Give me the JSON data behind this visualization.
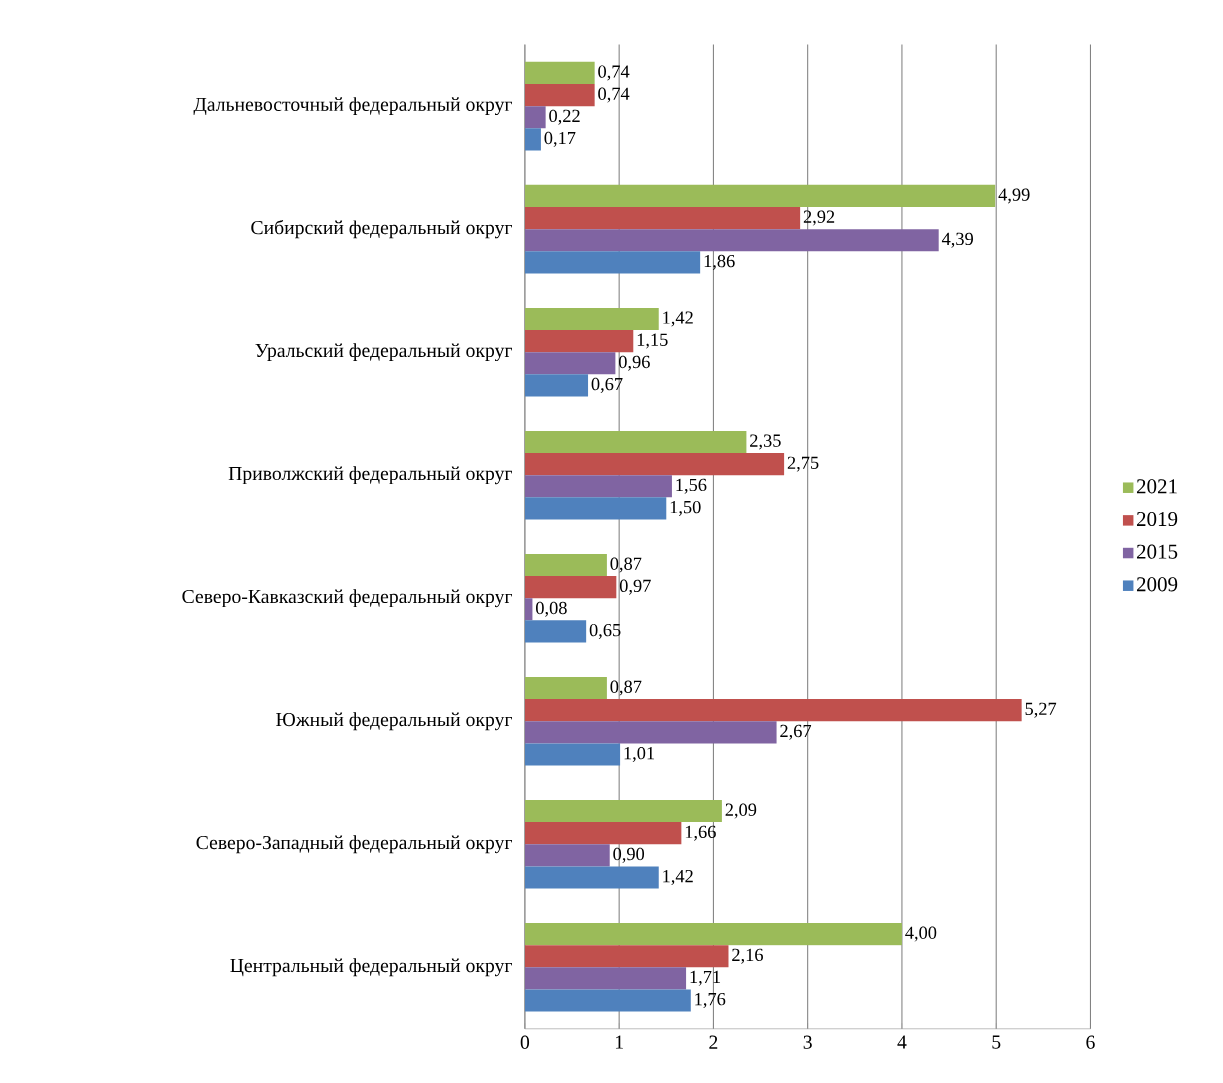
{
  "chart_data": {
    "type": "bar",
    "orientation": "horizontal",
    "categories": [
      "Дальневосточный федеральный округ",
      "Сибирский федеральный округ",
      "Уральский федеральный округ",
      "Приволжский федеральный округ",
      "Северо-Кавказский федеральный округ",
      "Южный федеральный округ",
      "Северо-Западный федеральный округ",
      "Центральный федеральный округ"
    ],
    "series": [
      {
        "name": "2021",
        "color": "#9bbb59",
        "values": [
          0.74,
          4.99,
          1.42,
          2.35,
          0.87,
          0.87,
          2.09,
          4.0
        ],
        "value_labels": [
          "0,74",
          "4,99",
          "1,42",
          "2,35",
          "0,87",
          "0,87",
          "2,09",
          "4,00"
        ]
      },
      {
        "name": "2019",
        "color": "#c0504d",
        "values": [
          0.74,
          2.92,
          1.15,
          2.75,
          0.97,
          5.27,
          1.66,
          2.16
        ],
        "value_labels": [
          "0,74",
          "2,92",
          "1,15",
          "2,75",
          "0,97",
          "5,27",
          "1,66",
          "2,16"
        ]
      },
      {
        "name": "2015",
        "color": "#8064a2",
        "values": [
          0.22,
          4.39,
          0.96,
          1.56,
          0.08,
          2.67,
          0.9,
          1.71
        ],
        "value_labels": [
          "0,22",
          "4,39",
          "0,96",
          "1,56",
          "0,08",
          "2,67",
          "0,90",
          "1,71"
        ]
      },
      {
        "name": "2009",
        "color": "#4f81bd",
        "values": [
          0.17,
          1.86,
          0.67,
          1.5,
          0.65,
          1.01,
          1.42,
          1.76
        ],
        "value_labels": [
          "0,17",
          "1,86",
          "0,67",
          "1,50",
          "0,65",
          "1,01",
          "1,42",
          "1,76"
        ]
      }
    ],
    "xlim": [
      0,
      6
    ],
    "xticks": [
      0,
      1,
      2,
      3,
      4,
      5,
      6
    ],
    "grid": "x",
    "legend": "right"
  }
}
